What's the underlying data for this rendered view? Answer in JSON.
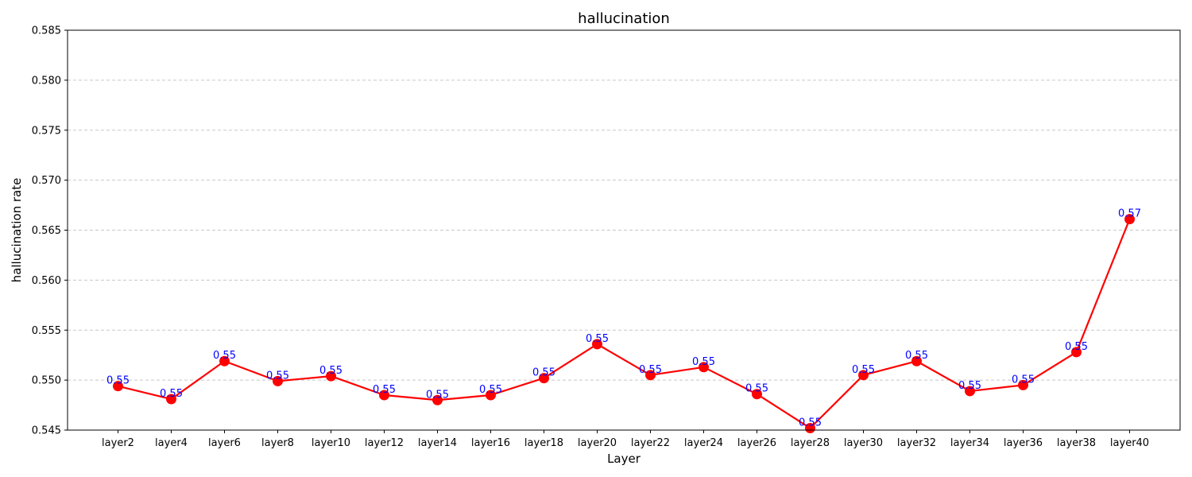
{
  "chart_data": {
    "type": "line",
    "title": "hallucination",
    "xlabel": "Layer",
    "ylabel": "hallucination rate",
    "categories": [
      "layer2",
      "layer4",
      "layer6",
      "layer8",
      "layer10",
      "layer12",
      "layer14",
      "layer16",
      "layer18",
      "layer20",
      "layer22",
      "layer24",
      "layer26",
      "layer28",
      "layer30",
      "layer32",
      "layer34",
      "layer36",
      "layer38",
      "layer40"
    ],
    "series": [
      {
        "name": "hallucination rate",
        "values": [
          0.5494,
          0.5481,
          0.5519,
          0.5499,
          0.5504,
          0.5485,
          0.548,
          0.5485,
          0.5502,
          0.5536,
          0.5505,
          0.5513,
          0.5486,
          0.5452,
          0.5505,
          0.5519,
          0.5489,
          0.5495,
          0.5528,
          0.5661
        ],
        "labels": [
          "0.55",
          "0.55",
          "0.55",
          "0.55",
          "0.55",
          "0.55",
          "0.55",
          "0.55",
          "0.55",
          "0.55",
          "0.55",
          "0.55",
          "0.55",
          "0.55",
          "0.55",
          "0.55",
          "0.55",
          "0.55",
          "0.55",
          "0.57"
        ]
      }
    ],
    "ylim": [
      0.545,
      0.585
    ],
    "yticks": [
      "0.545",
      "0.550",
      "0.555",
      "0.560",
      "0.565",
      "0.570",
      "0.575",
      "0.580",
      "0.585"
    ],
    "grid": "y-dashed",
    "colors": {
      "line": "#ff0000",
      "marker": "#ff0000",
      "label": "#0000ff",
      "grid": "#c8c8c8"
    }
  }
}
